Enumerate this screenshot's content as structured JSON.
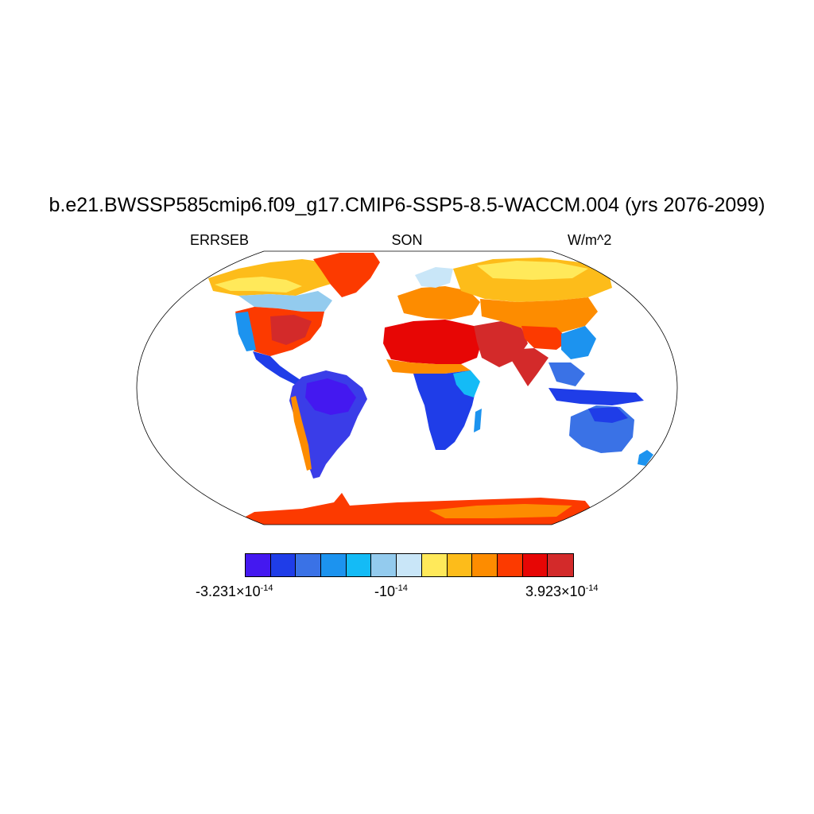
{
  "title": "b.e21.BWSSP585cmip6.f09_g17.CMIP6-SSP5-8.5-WACCM.004 (yrs 2076-2099)",
  "left_label": "ERRSEB",
  "center_label": "SON",
  "right_label": "W/m^2",
  "colorbar": {
    "colors": [
      "#4418f0",
      "#1f3de8",
      "#3a72e6",
      "#1c93ef",
      "#14bbf6",
      "#93cbee",
      "#c9e6f8",
      "#ffe95a",
      "#fdbc1a",
      "#fd8c00",
      "#fc3a00",
      "#e70605",
      "#d32a2a"
    ],
    "min_mantissa": "-3.231",
    "min_exp": "-14",
    "mid_base": "-10",
    "mid_exp": "-14",
    "max_mantissa": "3.923",
    "max_exp": "-14",
    "times": "×10"
  },
  "map": {
    "projection": "Robinson",
    "regions": [
      {
        "name": "Canada / Alaska",
        "category": "warm (yellow-orange)"
      },
      {
        "name": "Greenland",
        "category": "red"
      },
      {
        "name": "Eastern USA",
        "category": "red-orange"
      },
      {
        "name": "South America",
        "category": "blue"
      },
      {
        "name": "Sahara / Middle East",
        "category": "red"
      },
      {
        "name": "Central-South Africa",
        "category": "blue"
      },
      {
        "name": "Northern Eurasia",
        "category": "warm (yellow-orange)"
      },
      {
        "name": "Southern Asia",
        "category": "red"
      },
      {
        "name": "Australia",
        "category": "blue"
      },
      {
        "name": "Antarctica",
        "category": "red"
      }
    ]
  }
}
